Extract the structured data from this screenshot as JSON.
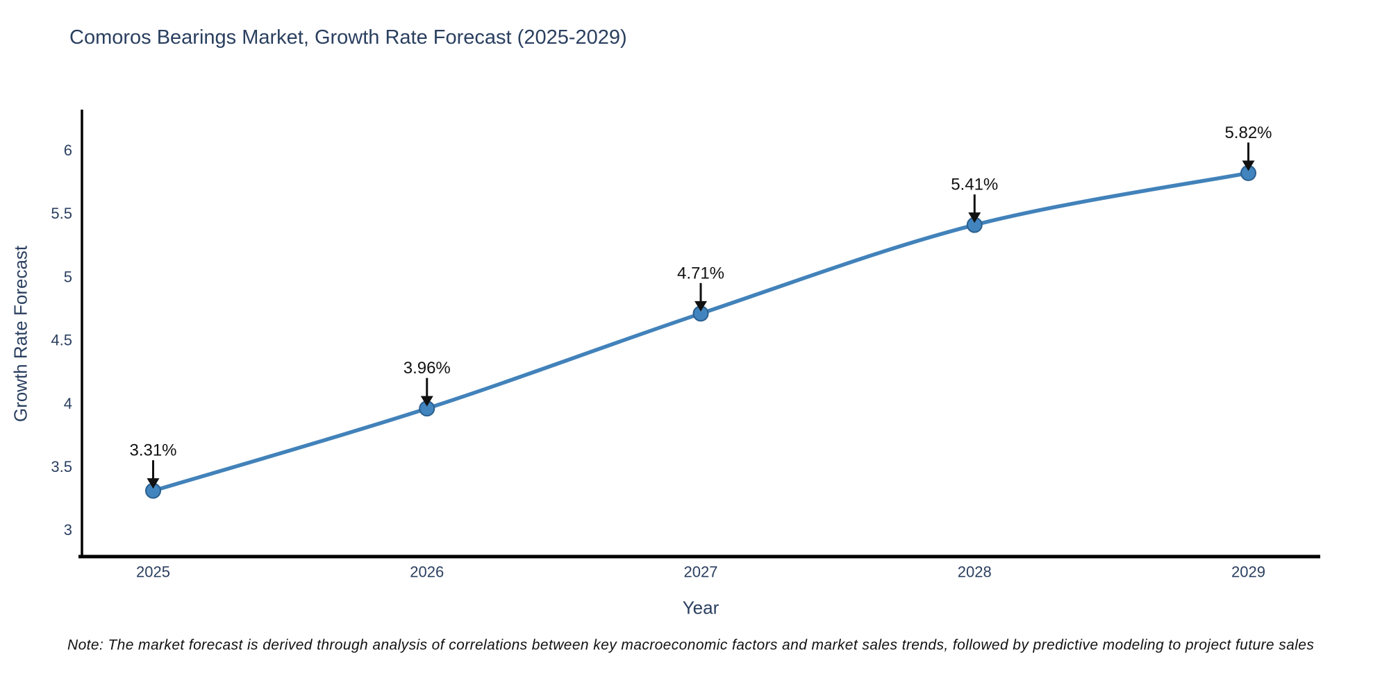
{
  "title": "Comoros Bearings Market, Growth Rate Forecast (2025-2029)",
  "note": "Note: The market forecast is derived through analysis of correlations between key macroeconomic factors and market sales trends, followed by predictive modeling to project future sales",
  "chart_data": {
    "type": "line",
    "title": "Comoros Bearings Market, Growth Rate Forecast (2025-2029)",
    "xlabel": "Year",
    "ylabel": "Growth Rate Forecast",
    "x": [
      2025,
      2026,
      2027,
      2028,
      2029
    ],
    "values": [
      3.31,
      3.96,
      4.71,
      5.41,
      5.82
    ],
    "point_labels": [
      "3.31%",
      "3.96%",
      "4.71%",
      "5.41%",
      "5.82%"
    ],
    "x_tick_labels": [
      "2025",
      "2026",
      "2027",
      "2028",
      "2029"
    ],
    "y_ticks": [
      3,
      3.5,
      4,
      4.5,
      5,
      5.5,
      6
    ],
    "y_tick_labels": [
      "3",
      "3.5",
      "4",
      "4.5",
      "5",
      "5.5",
      "6"
    ],
    "xlim": [
      2024.74,
      2029.26
    ],
    "ylim": [
      2.79,
      6.31
    ],
    "grid": false,
    "legend": "none",
    "line_shape": "spline",
    "colors": {
      "line": "#4282ba",
      "marker_fill": "#4184be",
      "marker_edge": "#2b5f8e",
      "axis": "#000000",
      "tick_text": "#2a3f5f",
      "annotation": "#111111",
      "background": "#ffffff"
    }
  }
}
